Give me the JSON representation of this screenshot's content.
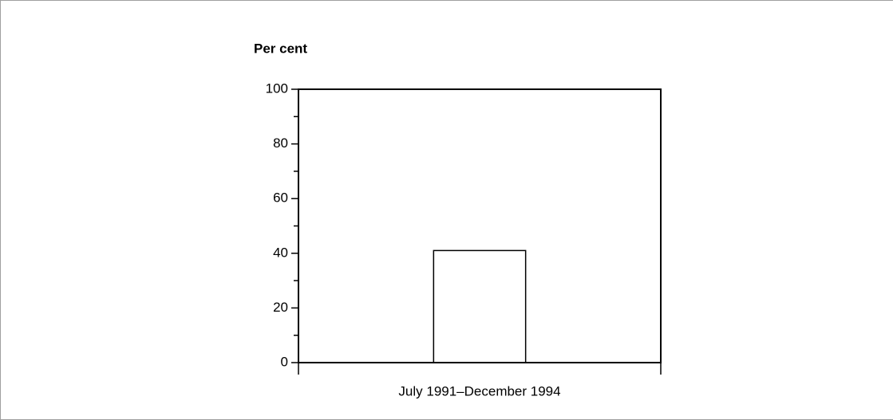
{
  "chart_data": {
    "type": "bar",
    "y_axis_label": "Per cent",
    "categories": [
      "July 1991–December 1994"
    ],
    "values": [
      41
    ],
    "color": "#ffffff",
    "ylim": [
      0,
      100
    ],
    "yticks": [
      0,
      20,
      40,
      60,
      80,
      100
    ],
    "minor_yticks": [
      10,
      30,
      50,
      70,
      90
    ]
  }
}
